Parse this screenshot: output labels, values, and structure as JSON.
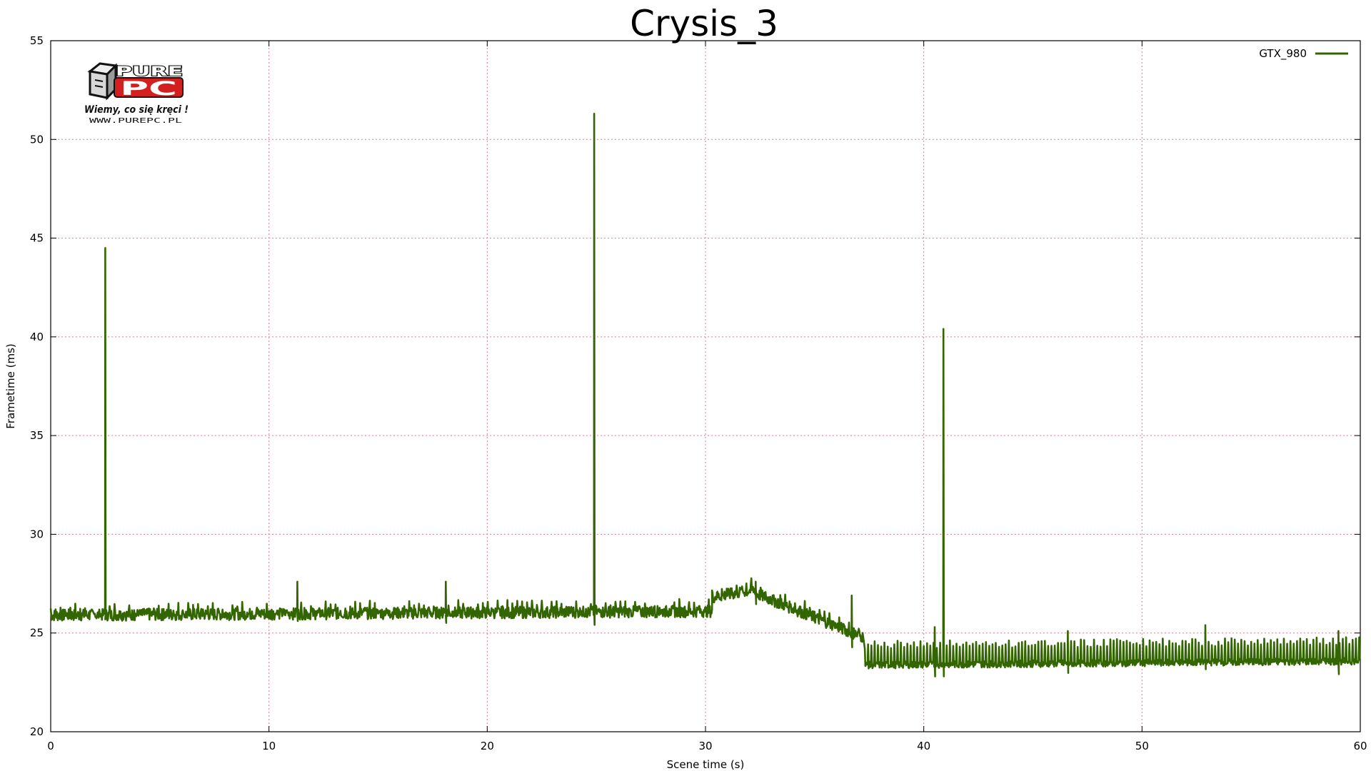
{
  "chart_data": {
    "type": "line",
    "title": "Crysis_3",
    "xlabel": "Scene time (s)",
    "ylabel": "Frametime (ms)",
    "xlim": [
      0,
      60
    ],
    "ylim": [
      20,
      55
    ],
    "xticks": [
      0,
      10,
      20,
      30,
      40,
      50,
      60
    ],
    "yticks": [
      20,
      25,
      30,
      35,
      40,
      45,
      50,
      55
    ],
    "grid": true,
    "legend_position": "top-right",
    "series": [
      {
        "name": "GTX_980",
        "color": "#336600",
        "baseline_segments": [
          {
            "x": [
              0,
              30.3
            ],
            "y": [
              25.9,
              26.1
            ]
          },
          {
            "x": [
              30.3,
              32.3
            ],
            "y": [
              26.8,
              27.2
            ]
          },
          {
            "x": [
              32.3,
              37.2
            ],
            "y": [
              27.0,
              24.8
            ]
          },
          {
            "x": [
              37.3,
              60
            ],
            "y": [
              23.3,
              23.5
            ]
          }
        ],
        "spikes": [
          {
            "x": 2.5,
            "y": 44.5
          },
          {
            "x": 24.9,
            "y": 51.3
          },
          {
            "x": 40.9,
            "y": 40.4
          },
          {
            "x": 11.3,
            "y": 27.6
          },
          {
            "x": 18.1,
            "y": 27.6
          },
          {
            "x": 32.3,
            "y": 27.6
          },
          {
            "x": 36.7,
            "y": 26.9
          },
          {
            "x": 40.5,
            "y": 25.3
          },
          {
            "x": 46.6,
            "y": 25.1
          },
          {
            "x": 52.9,
            "y": 25.4
          },
          {
            "x": 59.0,
            "y": 25.1
          }
        ]
      }
    ]
  },
  "logo": {
    "line1": "PURE",
    "line2": "PC",
    "slogan": "Wiemy, co się kręci !",
    "url": "WWW.PUREPC.PL"
  }
}
